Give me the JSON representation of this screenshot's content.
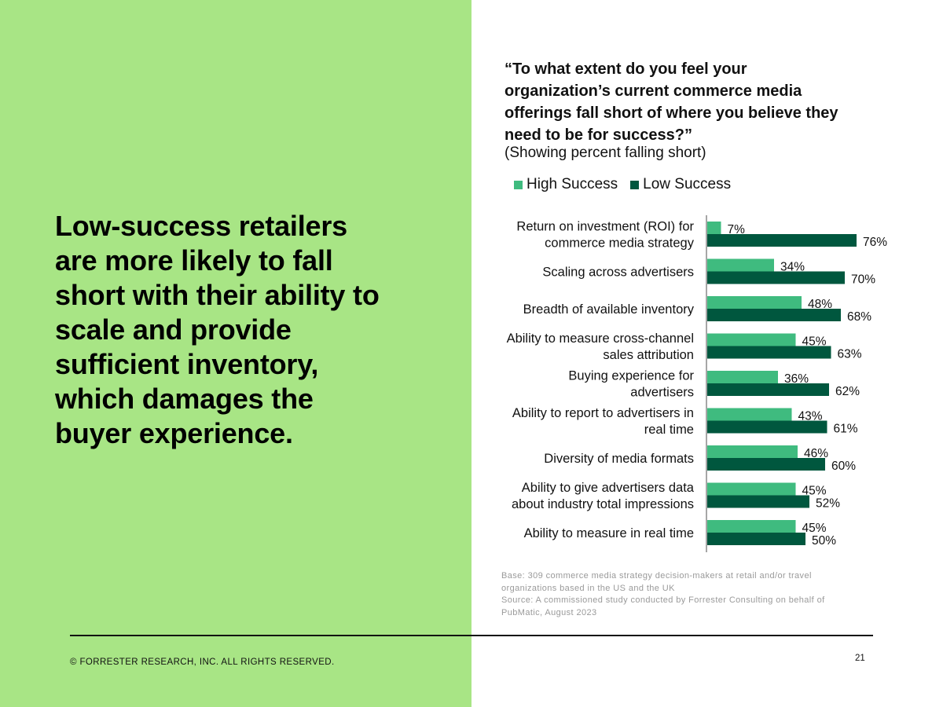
{
  "headline": "Low-success retailers are more likely to fall short with their ability to scale and provide sufficient inventory, which damages the buyer experience.",
  "question": "“To what extent do you feel your organization’s current commerce media offerings fall short of where you believe they need to be for success?”",
  "question_sub": "(Showing percent falling short)",
  "colors": {
    "left_panel": "#a8e585",
    "high_success": "#3fbb7f",
    "low_success": "#00573e"
  },
  "chart_data": {
    "type": "bar",
    "orientation": "horizontal",
    "categories": [
      "Return on investment (ROI) for\ncommerce media strategy",
      "Scaling across advertisers",
      "Breadth of available inventory",
      "Ability to measure cross-channel\nsales attribution",
      "Buying experience for\nadvertisers",
      "Ability to report to advertisers in\nreal time",
      "Diversity of media formats",
      "Ability to give advertisers data\nabout industry total impressions",
      "Ability to measure in real time"
    ],
    "series": [
      {
        "name": "High Success",
        "color": "#3fbb7f",
        "values": [
          7,
          34,
          48,
          45,
          36,
          43,
          46,
          45,
          45
        ],
        "labels": [
          "7%",
          "34%",
          "48%",
          "45%",
          "36%",
          "43%",
          "46%",
          "45%",
          "45%"
        ]
      },
      {
        "name": "Low Success",
        "color": "#00573e",
        "values": [
          76,
          70,
          68,
          63,
          62,
          61,
          60,
          52,
          50
        ],
        "labels": [
          "76%",
          "70%",
          "68%",
          "63%",
          "62%",
          "61%",
          "60%",
          "52%",
          "50%"
        ]
      }
    ],
    "legend_position": "top",
    "grid": false,
    "xlim": [
      0,
      100
    ]
  },
  "notes": {
    "base": "Base: 309 commerce media strategy decision-makers at retail and/or travel organizations based in the US and the UK",
    "source": "Source: A commissioned study conducted by Forrester Consulting on behalf of PubMatic, August 2023"
  },
  "footer": {
    "copyright": "© FORRESTER RESEARCH, INC. ALL RIGHTS RESERVED.",
    "page_number": "21"
  }
}
